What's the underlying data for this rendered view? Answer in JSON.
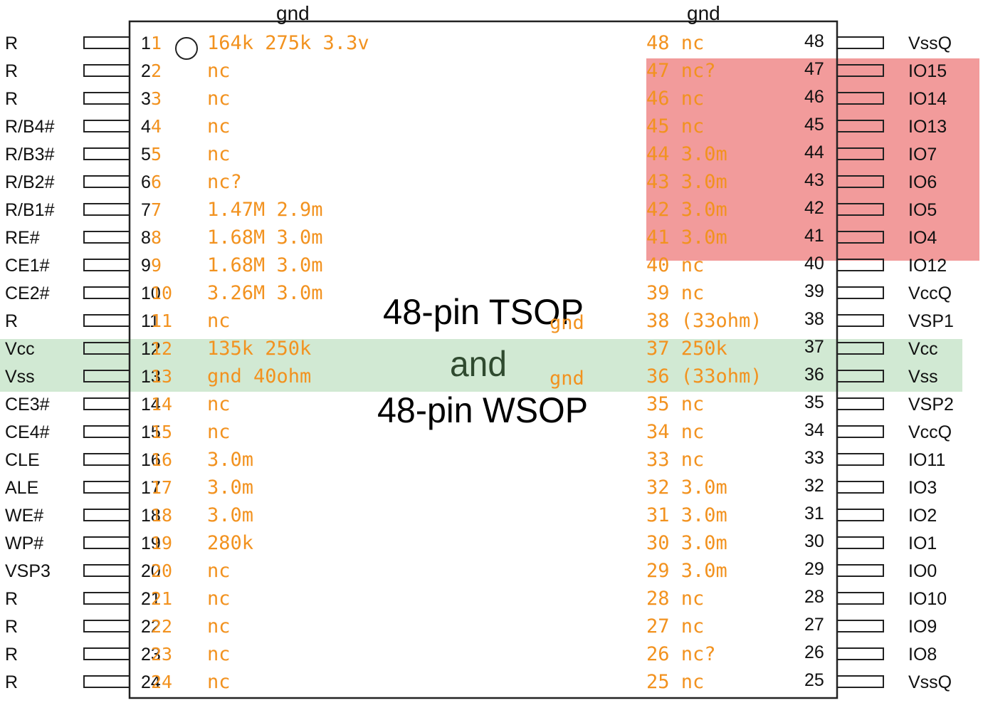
{
  "colors": {
    "annotation": "#f2921f",
    "red_highlight": "#f08080",
    "green_highlight": "#c8e6c9",
    "outline": "#222222"
  },
  "title": {
    "line1": "48-pin TSOP",
    "line2": "and",
    "line3": "48-pin WSOP"
  },
  "top_labels": [
    "gnd",
    "gnd"
  ],
  "center_labels": [
    "gnd",
    "gnd"
  ],
  "left_pins": [
    {
      "num": "1",
      "name": "R",
      "meas": "164k 275k  3.3v"
    },
    {
      "num": "2",
      "name": "R",
      "meas": "nc"
    },
    {
      "num": "3",
      "name": "R",
      "meas": "nc"
    },
    {
      "num": "4",
      "name": "R/B4#",
      "meas": "nc"
    },
    {
      "num": "5",
      "name": "R/B3#",
      "meas": "nc"
    },
    {
      "num": "6",
      "name": "R/B2#",
      "meas": "nc?"
    },
    {
      "num": "7",
      "name": "R/B1#",
      "meas": "1.47M 2.9m"
    },
    {
      "num": "8",
      "name": "RE#",
      "meas": "1.68M 3.0m"
    },
    {
      "num": "9",
      "name": "CE1#",
      "meas": "1.68M 3.0m"
    },
    {
      "num": "10",
      "name": "CE2#",
      "meas": "3.26M 3.0m"
    },
    {
      "num": "11",
      "name": "R",
      "meas": "nc"
    },
    {
      "num": "12",
      "name": "Vcc",
      "meas": "135k 250k"
    },
    {
      "num": "13",
      "name": "Vss",
      "meas": "gnd 40ohm"
    },
    {
      "num": "14",
      "name": "CE3#",
      "meas": "nc"
    },
    {
      "num": "15",
      "name": "CE4#",
      "meas": "nc"
    },
    {
      "num": "16",
      "name": "CLE",
      "meas": "3.0m"
    },
    {
      "num": "17",
      "name": "ALE",
      "meas": "3.0m"
    },
    {
      "num": "18",
      "name": "WE#",
      "meas": "3.0m"
    },
    {
      "num": "19",
      "name": "WP#",
      "meas": "280k"
    },
    {
      "num": "20",
      "name": "VSP3",
      "meas": "nc"
    },
    {
      "num": "21",
      "name": "R",
      "meas": "nc"
    },
    {
      "num": "22",
      "name": "R",
      "meas": "nc"
    },
    {
      "num": "23",
      "name": "R",
      "meas": "nc"
    },
    {
      "num": "24",
      "name": "R",
      "meas": "nc"
    }
  ],
  "right_pins": [
    {
      "num": "48",
      "name": "VssQ",
      "meas": "48 nc"
    },
    {
      "num": "47",
      "name": "IO15",
      "meas": "47 nc?"
    },
    {
      "num": "46",
      "name": "IO14",
      "meas": "46 nc"
    },
    {
      "num": "45",
      "name": "IO13",
      "meas": "45 nc"
    },
    {
      "num": "44",
      "name": "IO7",
      "meas": "44 3.0m"
    },
    {
      "num": "43",
      "name": "IO6",
      "meas": "43 3.0m"
    },
    {
      "num": "42",
      "name": "IO5",
      "meas": "42 3.0m"
    },
    {
      "num": "41",
      "name": "IO4",
      "meas": "41 3.0m"
    },
    {
      "num": "40",
      "name": "IO12",
      "meas": "40 nc"
    },
    {
      "num": "39",
      "name": "VccQ",
      "meas": "39 nc"
    },
    {
      "num": "38",
      "name": "VSP1",
      "meas": "38 (33ohm)"
    },
    {
      "num": "37",
      "name": "Vcc",
      "meas": "37 250k"
    },
    {
      "num": "36",
      "name": "Vss",
      "meas": "36 (33ohm)"
    },
    {
      "num": "35",
      "name": "VSP2",
      "meas": "35 nc"
    },
    {
      "num": "34",
      "name": "VccQ",
      "meas": "34 nc"
    },
    {
      "num": "33",
      "name": "IO11",
      "meas": "33 nc"
    },
    {
      "num": "32",
      "name": "IO3",
      "meas": "32 3.0m"
    },
    {
      "num": "31",
      "name": "IO2",
      "meas": "31 3.0m"
    },
    {
      "num": "30",
      "name": "IO1",
      "meas": "30 3.0m"
    },
    {
      "num": "29",
      "name": "IO0",
      "meas": "29 3.0m"
    },
    {
      "num": "28",
      "name": "IO10",
      "meas": "28 nc"
    },
    {
      "num": "27",
      "name": "IO9",
      "meas": "27 nc"
    },
    {
      "num": "26",
      "name": "IO8",
      "meas": "26 nc?"
    },
    {
      "num": "25",
      "name": "VssQ",
      "meas": "25 nc"
    }
  ]
}
